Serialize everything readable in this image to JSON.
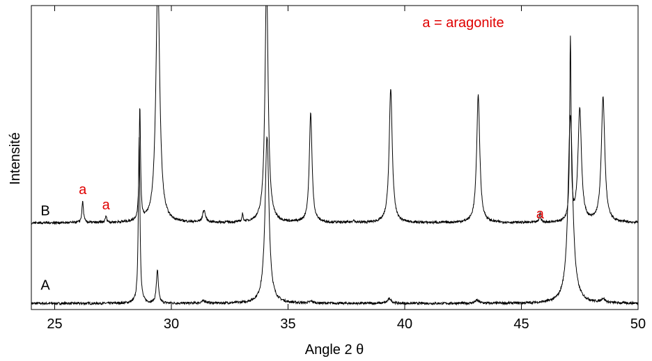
{
  "chart_data": {
    "type": "line",
    "title": "",
    "xlabel": "Angle 2 θ",
    "ylabel": "Intensité",
    "xlim": [
      24,
      50
    ],
    "ylim": [
      0,
      100
    ],
    "x_ticks": [
      25,
      30,
      35,
      40,
      45,
      50
    ],
    "grid": false,
    "legend": "a = aragonite",
    "legend_placement": "top-right",
    "colors": {
      "line": "#000000",
      "annotation": "#e00000",
      "axis": "#000000"
    },
    "series": [
      {
        "name": "A",
        "baseline": 2,
        "noise": 0.4,
        "peaks": [
          {
            "x": 28.62,
            "height": 55,
            "width": 0.04
          },
          {
            "x": 29.4,
            "height": 11,
            "width": 0.05
          },
          {
            "x": 31.4,
            "height": 0.8,
            "width": 0.12
          },
          {
            "x": 34.1,
            "height": 55,
            "width": 0.1
          },
          {
            "x": 36.0,
            "height": 0.6,
            "width": 0.1
          },
          {
            "x": 39.35,
            "height": 1.5,
            "width": 0.1
          },
          {
            "x": 43.1,
            "height": 1.0,
            "width": 0.1
          },
          {
            "x": 47.1,
            "height": 62,
            "width": 0.12
          },
          {
            "x": 48.5,
            "height": 1.3,
            "width": 0.1
          }
        ]
      },
      {
        "name": "B",
        "baseline": 28.5,
        "noise": 0.4,
        "peaks": [
          {
            "x": 26.2,
            "height": 7,
            "width": 0.04
          },
          {
            "x": 27.2,
            "height": 2,
            "width": 0.04
          },
          {
            "x": 28.65,
            "height": 37,
            "width": 0.035
          },
          {
            "x": 29.42,
            "height": 80,
            "width": 0.1
          },
          {
            "x": 31.4,
            "height": 4,
            "width": 0.07
          },
          {
            "x": 33.05,
            "height": 2.5,
            "width": 0.03
          },
          {
            "x": 34.08,
            "height": 80,
            "width": 0.08
          },
          {
            "x": 35.97,
            "height": 36,
            "width": 0.07
          },
          {
            "x": 37.8,
            "height": 0.8,
            "width": 0.05
          },
          {
            "x": 39.4,
            "height": 44,
            "width": 0.08
          },
          {
            "x": 43.15,
            "height": 42,
            "width": 0.08
          },
          {
            "x": 45.8,
            "height": 3,
            "width": 0.04
          },
          {
            "x": 47.1,
            "height": 60,
            "width": 0.035
          },
          {
            "x": 47.5,
            "height": 37,
            "width": 0.09
          },
          {
            "x": 48.5,
            "height": 41,
            "width": 0.09
          }
        ],
        "label_y": 31
      }
    ],
    "annotations": [
      {
        "text": "a",
        "x": 26.2,
        "y": 38
      },
      {
        "text": "a",
        "x": 27.2,
        "y": 33
      },
      {
        "text": "a",
        "x": 45.8,
        "y": 30
      }
    ],
    "series_labels": [
      {
        "text": "B",
        "x": 24.6,
        "y": 31
      },
      {
        "text": "A",
        "x": 24.6,
        "y": 6.5
      }
    ]
  }
}
